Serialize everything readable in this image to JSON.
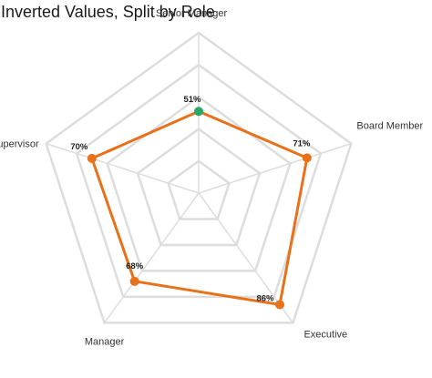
{
  "chart_data": {
    "type": "radar",
    "title": "Inverted Values, Split by Role",
    "categories": [
      "Board Member",
      "Executive",
      "Manager",
      "Supervisor",
      "Senior Manager"
    ],
    "series": [
      {
        "values": [
          71,
          86,
          68,
          70,
          51
        ],
        "labels": [
          "71%",
          "86%",
          "68%",
          "70%",
          "51%"
        ]
      }
    ],
    "range": [
      0,
      100
    ],
    "rings": 5,
    "colors": {
      "series": "#e8711a",
      "highlight_point": "#2aa86b",
      "grid": "#dddddd"
    },
    "highlight_index": 4
  }
}
